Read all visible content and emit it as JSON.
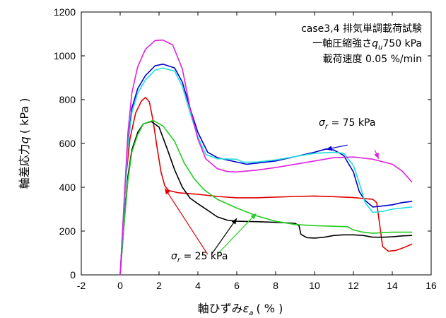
{
  "chart_data": {
    "type": "line",
    "title_lines": [
      "case3,4 排気単調載荷試験",
      "一軸圧縮強さ",
      "750 kPa",
      "載荷速度 0.05 %/min"
    ],
    "title_qu_symbol": "q",
    "title_qu_sub": "u",
    "xlabel_prefix": "軸ひずみ",
    "xlabel_symbol": "ε",
    "xlabel_sub": "a",
    "xlabel_suffix": "( % )",
    "ylabel_prefix": "軸差応力",
    "ylabel_symbol": "q",
    "ylabel_suffix": "( kPa )",
    "xlim": [
      -2,
      16
    ],
    "ylim": [
      0,
      1200
    ],
    "xticks": [
      -2,
      0,
      2,
      4,
      6,
      8,
      10,
      12,
      14,
      16
    ],
    "yticks": [
      0,
      200,
      400,
      600,
      800,
      1000,
      1200
    ],
    "annotations": [
      {
        "symbol": "σ",
        "sub": "r",
        "text": " = 75 kPa"
      },
      {
        "symbol": "σ",
        "sub": "r",
        "text": " = 25 kPa"
      }
    ],
    "colors": {
      "black": "#000000",
      "red": "#e00000",
      "green": "#22cc22",
      "blue": "#0000cc",
      "cyan": "#22dddd",
      "magenta": "#dd22dd"
    },
    "series": [
      {
        "color": "red",
        "group": "25 kPa",
        "points": [
          [
            0,
            0
          ],
          [
            0.15,
            200
          ],
          [
            0.3,
            450
          ],
          [
            0.5,
            620
          ],
          [
            0.8,
            740
          ],
          [
            1.1,
            795
          ],
          [
            1.3,
            810
          ],
          [
            1.5,
            790
          ],
          [
            1.7,
            700
          ],
          [
            1.9,
            580
          ],
          [
            2.1,
            470
          ],
          [
            2.3,
            405
          ],
          [
            2.5,
            385
          ],
          [
            3,
            375
          ],
          [
            4,
            368
          ],
          [
            5,
            358
          ],
          [
            6,
            352
          ],
          [
            7,
            352
          ],
          [
            8,
            355
          ],
          [
            9,
            358
          ],
          [
            10,
            360
          ],
          [
            11,
            357
          ],
          [
            12,
            353
          ],
          [
            13,
            345
          ],
          [
            13.2,
            330
          ],
          [
            13.5,
            130
          ],
          [
            13.8,
            108
          ],
          [
            14.2,
            112
          ],
          [
            14.6,
            125
          ],
          [
            15,
            140
          ]
        ]
      },
      {
        "color": "black",
        "group": "25 kPa",
        "points": [
          [
            0,
            0
          ],
          [
            0.2,
            230
          ],
          [
            0.4,
            450
          ],
          [
            0.6,
            570
          ],
          [
            0.9,
            650
          ],
          [
            1.2,
            690
          ],
          [
            1.6,
            700
          ],
          [
            2,
            675
          ],
          [
            2.4,
            580
          ],
          [
            2.8,
            480
          ],
          [
            3.2,
            400
          ],
          [
            3.6,
            350
          ],
          [
            4,
            325
          ],
          [
            4.5,
            295
          ],
          [
            5,
            265
          ],
          [
            5.5,
            250
          ],
          [
            6,
            245
          ],
          [
            7,
            243
          ],
          [
            8,
            240
          ],
          [
            9,
            235
          ],
          [
            9.2,
            225
          ],
          [
            9.3,
            185
          ],
          [
            9.6,
            170
          ],
          [
            10,
            168
          ],
          [
            10.5,
            172
          ],
          [
            11,
            180
          ],
          [
            11.5,
            183
          ],
          [
            12,
            183
          ],
          [
            12.5,
            180
          ],
          [
            13,
            172
          ],
          [
            13.5,
            172
          ],
          [
            14,
            174
          ],
          [
            14.5,
            178
          ],
          [
            15,
            180
          ]
        ]
      },
      {
        "color": "green",
        "group": "25 kPa",
        "points": [
          [
            0,
            0
          ],
          [
            0.2,
            230
          ],
          [
            0.4,
            430
          ],
          [
            0.6,
            560
          ],
          [
            0.9,
            640
          ],
          [
            1.2,
            690
          ],
          [
            1.7,
            705
          ],
          [
            2.2,
            680
          ],
          [
            2.8,
            610
          ],
          [
            3.3,
            510
          ],
          [
            3.8,
            440
          ],
          [
            4.3,
            390
          ],
          [
            5,
            345
          ],
          [
            6,
            305
          ],
          [
            7,
            270
          ],
          [
            8,
            245
          ],
          [
            9,
            230
          ],
          [
            10,
            225
          ],
          [
            11,
            222
          ],
          [
            11.7,
            220
          ],
          [
            12,
            205
          ],
          [
            12.5,
            195
          ],
          [
            13,
            190
          ],
          [
            13.5,
            193
          ],
          [
            14,
            195
          ],
          [
            15,
            195
          ]
        ]
      },
      {
        "color": "blue",
        "group": "75 kPa",
        "points": [
          [
            0,
            0
          ],
          [
            0.2,
            300
          ],
          [
            0.4,
            600
          ],
          [
            0.6,
            760
          ],
          [
            0.9,
            850
          ],
          [
            1.3,
            910
          ],
          [
            1.8,
            955
          ],
          [
            2.2,
            962
          ],
          [
            2.8,
            945
          ],
          [
            3.2,
            880
          ],
          [
            3.6,
            760
          ],
          [
            4,
            650
          ],
          [
            4.5,
            560
          ],
          [
            5,
            535
          ],
          [
            5.5,
            525
          ],
          [
            6,
            515
          ],
          [
            6.5,
            505
          ],
          [
            7,
            510
          ],
          [
            8,
            520
          ],
          [
            9,
            540
          ],
          [
            10,
            560
          ],
          [
            10.6,
            575
          ],
          [
            11,
            570
          ],
          [
            11.5,
            545
          ],
          [
            12,
            470
          ],
          [
            12.3,
            380
          ],
          [
            12.6,
            340
          ],
          [
            13,
            310
          ],
          [
            13.5,
            315
          ],
          [
            14,
            320
          ],
          [
            14.5,
            330
          ],
          [
            15,
            335
          ]
        ]
      },
      {
        "color": "cyan",
        "group": "75 kPa",
        "points": [
          [
            0,
            0
          ],
          [
            0.2,
            300
          ],
          [
            0.4,
            590
          ],
          [
            0.6,
            740
          ],
          [
            0.9,
            830
          ],
          [
            1.3,
            890
          ],
          [
            1.8,
            935
          ],
          [
            2.2,
            945
          ],
          [
            2.8,
            930
          ],
          [
            3.2,
            860
          ],
          [
            3.6,
            740
          ],
          [
            4,
            630
          ],
          [
            4.4,
            550
          ],
          [
            5,
            530
          ],
          [
            6,
            528
          ],
          [
            6.3,
            515
          ],
          [
            7,
            515
          ],
          [
            8,
            525
          ],
          [
            9,
            540
          ],
          [
            10,
            555
          ],
          [
            11,
            560
          ],
          [
            11.5,
            555
          ],
          [
            12,
            500
          ],
          [
            12.3,
            420
          ],
          [
            12.6,
            330
          ],
          [
            13,
            285
          ],
          [
            13.5,
            290
          ],
          [
            14,
            300
          ],
          [
            14.5,
            305
          ],
          [
            15,
            310
          ]
        ]
      },
      {
        "color": "magenta",
        "group": "75 kPa",
        "points": [
          [
            0,
            0
          ],
          [
            0.2,
            330
          ],
          [
            0.4,
            650
          ],
          [
            0.6,
            830
          ],
          [
            0.9,
            950
          ],
          [
            1.3,
            1030
          ],
          [
            1.8,
            1070
          ],
          [
            2.2,
            1072
          ],
          [
            2.7,
            1050
          ],
          [
            3.2,
            940
          ],
          [
            3.6,
            760
          ],
          [
            4,
            620
          ],
          [
            4.4,
            530
          ],
          [
            5,
            485
          ],
          [
            5.5,
            472
          ],
          [
            6,
            470
          ],
          [
            7,
            478
          ],
          [
            8,
            490
          ],
          [
            9,
            505
          ],
          [
            10,
            520
          ],
          [
            11,
            535
          ],
          [
            12,
            538
          ],
          [
            13,
            528
          ],
          [
            14,
            505
          ],
          [
            14.5,
            475
          ],
          [
            15,
            425
          ]
        ]
      }
    ]
  }
}
